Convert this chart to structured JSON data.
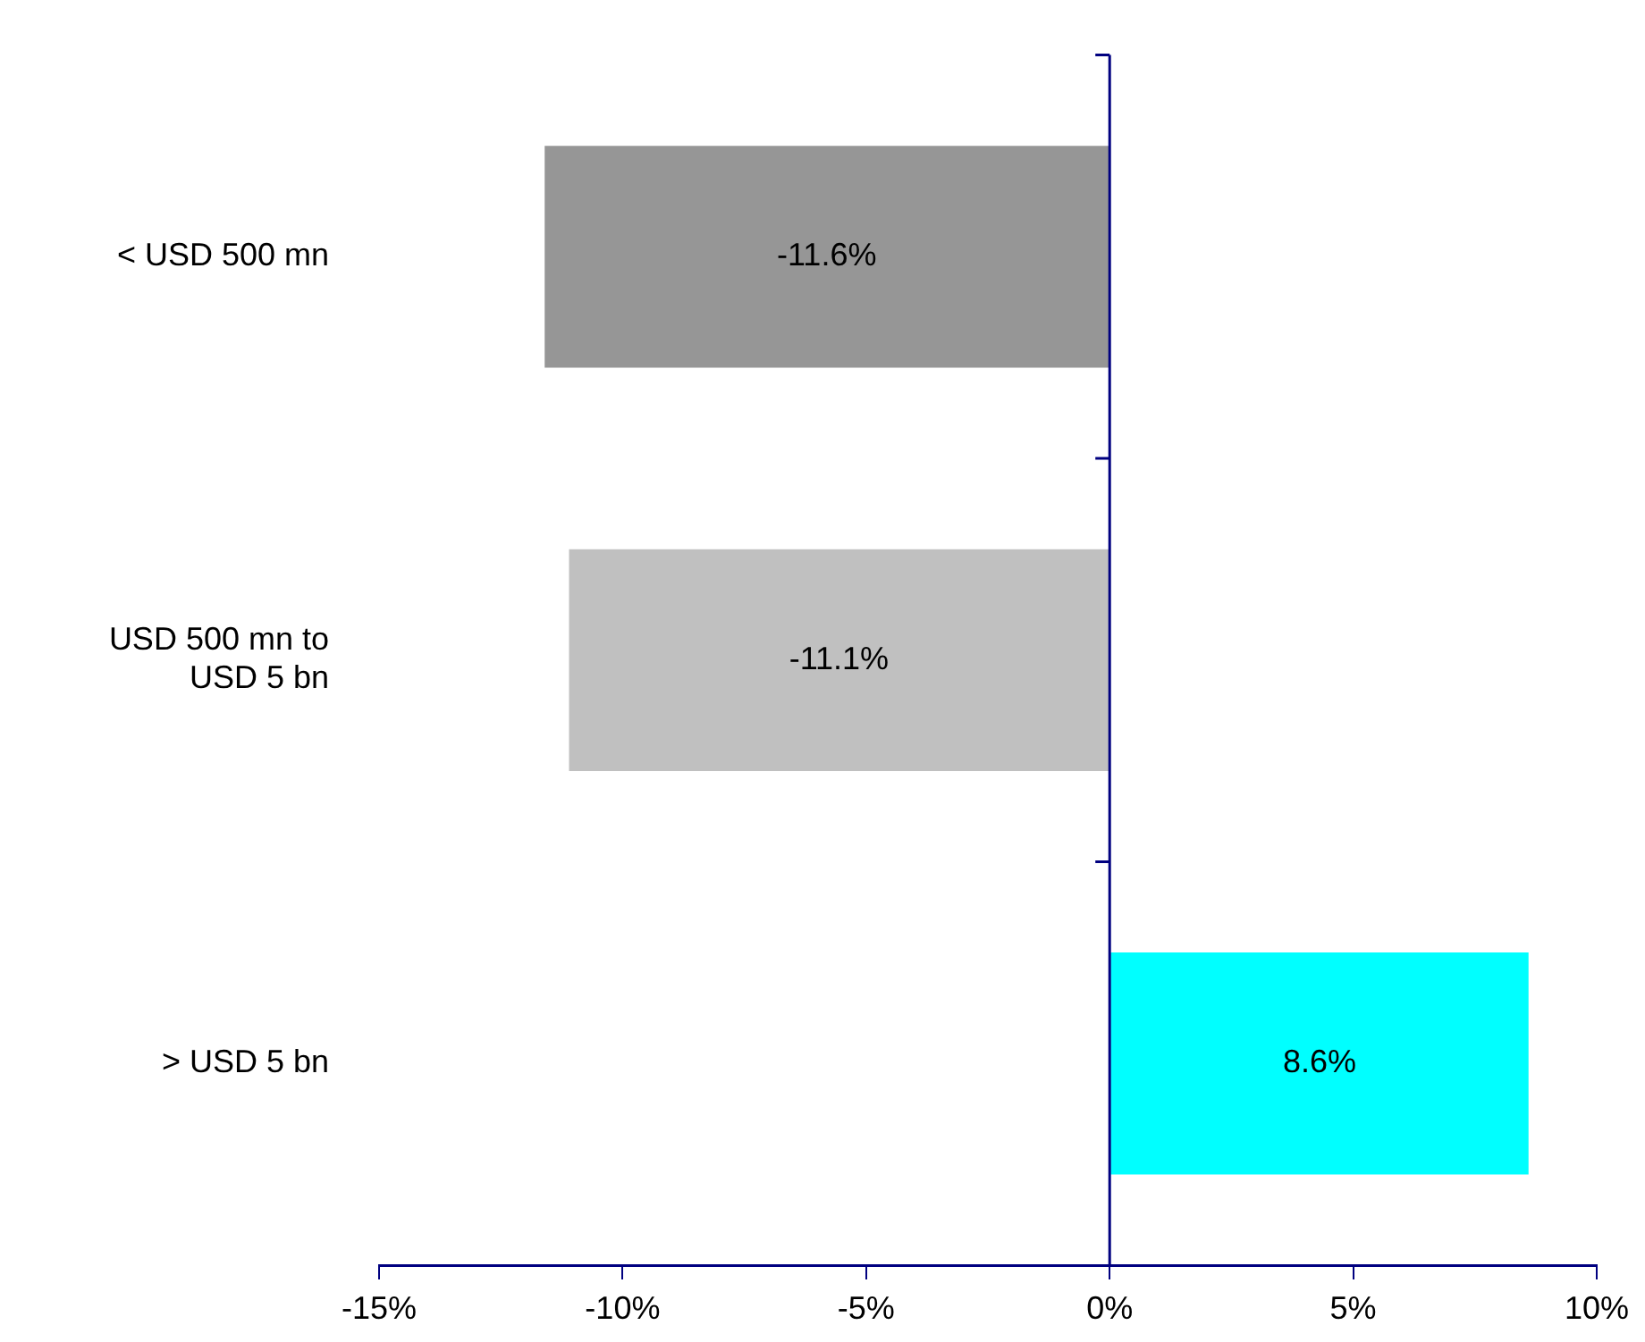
{
  "chart_data": {
    "type": "bar",
    "orientation": "horizontal",
    "categories": [
      "< USD 500 mn",
      "USD 500 mn to USD 5 bn",
      "> USD 5 bn"
    ],
    "values": [
      -11.6,
      -11.1,
      8.6
    ],
    "colors": [
      "#969696",
      "#c0c0c0",
      "#00ffff"
    ],
    "value_labels": [
      "-11.6%",
      "-11.1%",
      "8.6%"
    ],
    "xlim": [
      -15,
      10
    ],
    "ref_lines": [
      {
        "axis": "x",
        "value": 0,
        "color": "#000080"
      }
    ],
    "xticks": [
      {
        "value": -15,
        "label": "-15%"
      },
      {
        "value": -10,
        "label": "-10%"
      },
      {
        "value": -5,
        "label": "-5%"
      },
      {
        "value": 0,
        "label": "0%"
      },
      {
        "value": 5,
        "label": "5%"
      },
      {
        "value": 10,
        "label": "10%"
      }
    ]
  }
}
